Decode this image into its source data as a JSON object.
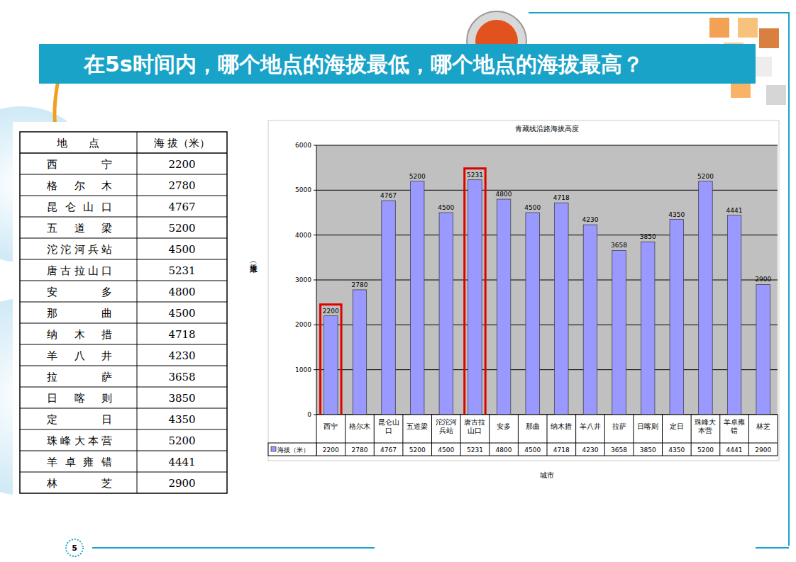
{
  "heading": "在5s时间内，哪个地点的海拔最低，哪个地点的海拔最高？",
  "page_number": "5",
  "table": {
    "header": [
      "地点",
      "海 拔（米）"
    ],
    "rows": [
      [
        "西宁",
        2200
      ],
      [
        "格尔木",
        2780
      ],
      [
        "昆仑山口",
        4767
      ],
      [
        "五道梁",
        5200
      ],
      [
        "沱沱河兵站",
        4500
      ],
      [
        "唐古拉山口",
        5231
      ],
      [
        "安多",
        4800
      ],
      [
        "那曲",
        4500
      ],
      [
        "纳木措",
        4718
      ],
      [
        "羊八井",
        4230
      ],
      [
        "拉萨",
        3658
      ],
      [
        "日喀则",
        3850
      ],
      [
        "定日",
        4350
      ],
      [
        "珠峰大本营",
        5200
      ],
      [
        "羊卓雍错",
        4441
      ],
      [
        "林芝",
        2900
      ]
    ]
  },
  "chart_data": {
    "type": "bar",
    "title": "青藏线沿路海拔高度",
    "y_label": "海拔（米）",
    "x_label": "城市",
    "categories": [
      "西宁",
      "格尔木",
      "昆仑山口",
      "五道梁",
      "沱沱河兵站",
      "唐古拉山口",
      "安多",
      "那曲",
      "纳木措",
      "羊八井",
      "拉萨",
      "日喀则",
      "定日",
      "珠峰大本营",
      "羊卓雍错",
      "林芝"
    ],
    "series": [
      {
        "name": "海拔（米）",
        "color": "#9999ff",
        "values": [
          2200,
          2780,
          4767,
          5200,
          4500,
          5231,
          4800,
          4500,
          4718,
          4230,
          3658,
          3850,
          4350,
          5200,
          4441,
          2900
        ]
      }
    ],
    "ylim": [
      0,
      6000
    ],
    "yticks": [
      0,
      1000,
      2000,
      3000,
      4000,
      5000,
      6000
    ],
    "grid": true,
    "data_labels": true,
    "legend": "bottom-left"
  }
}
